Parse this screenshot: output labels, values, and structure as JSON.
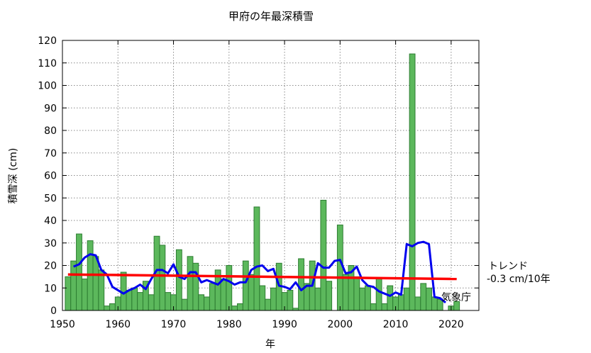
{
  "chart_data": {
    "type": "bar",
    "title": "甲府の年最深積雪",
    "xlabel": "年",
    "ylabel": "積雪深 (cm)",
    "xlim": [
      1950,
      2025
    ],
    "ylim": [
      0,
      120
    ],
    "xticks": [
      "1950",
      "1960",
      "1970",
      "1980",
      "1990",
      "2000",
      "2010",
      "2020"
    ],
    "yticks": [
      "0",
      "10",
      "20",
      "30",
      "40",
      "50",
      "60",
      "70",
      "80",
      "90",
      "100",
      "110",
      "120"
    ],
    "grid": true,
    "x": [
      1951,
      1952,
      1953,
      1954,
      1955,
      1956,
      1957,
      1958,
      1959,
      1960,
      1961,
      1962,
      1963,
      1964,
      1965,
      1966,
      1967,
      1968,
      1969,
      1970,
      1971,
      1972,
      1973,
      1974,
      1975,
      1976,
      1977,
      1978,
      1979,
      1980,
      1981,
      1982,
      1983,
      1984,
      1985,
      1986,
      1987,
      1988,
      1989,
      1990,
      1991,
      1992,
      1993,
      1994,
      1995,
      1996,
      1997,
      1998,
      1999,
      2000,
      2001,
      2002,
      2003,
      2004,
      2005,
      2006,
      2007,
      2008,
      2009,
      2010,
      2011,
      2012,
      2013,
      2014,
      2015,
      2016,
      2017,
      2018,
      2019,
      2020,
      2021
    ],
    "series": [
      {
        "type": "bar",
        "color": "#5cb85c",
        "values": [
          15,
          22,
          34,
          14,
          31,
          24,
          18,
          2,
          3,
          6,
          17,
          9,
          10,
          8,
          13,
          7,
          33,
          29,
          8,
          7,
          27,
          5,
          24,
          21,
          7,
          6,
          12,
          18,
          14,
          20,
          2,
          3,
          22,
          16,
          46,
          11,
          5,
          10,
          21,
          8,
          9,
          1,
          23,
          12,
          22,
          10,
          49,
          13,
          0,
          38,
          16,
          20,
          15,
          10,
          11,
          3,
          14,
          3,
          11,
          6,
          7,
          10,
          114,
          6,
          12,
          10,
          6,
          5,
          0,
          2,
          4
        ]
      },
      {
        "type": "line",
        "color": "#0000ee",
        "x": [
          1952,
          1953,
          1954,
          1955,
          1956,
          1957,
          1958,
          1959,
          1960,
          1961,
          1962,
          1963,
          1964,
          1965,
          1966,
          1967,
          1968,
          1969,
          1970,
          1971,
          1972,
          1973,
          1974,
          1975,
          1976,
          1977,
          1978,
          1979,
          1980,
          1981,
          1982,
          1983,
          1984,
          1985,
          1986,
          1987,
          1988,
          1989,
          1990,
          1991,
          1992,
          1993,
          1994,
          1995,
          1996,
          1997,
          1998,
          1999,
          2000,
          2001,
          2002,
          2003,
          2004,
          2005,
          2006,
          2007,
          2008,
          2009,
          2010,
          2011,
          2012,
          2013,
          2014,
          2015,
          2016,
          2017,
          2018,
          2019
        ],
        "values": [
          19.5,
          20.5,
          23.5,
          25,
          24.5,
          18,
          16,
          10.5,
          9,
          7.5,
          9,
          10,
          11.5,
          9.5,
          14,
          18,
          18,
          16.5,
          20.5,
          15,
          14,
          17,
          17,
          12.5,
          13.5,
          12.5,
          11.5,
          14,
          13,
          11.5,
          12.5,
          12.5,
          18,
          19.5,
          20,
          17.5,
          18.5,
          11,
          10.5,
          9.5,
          12.5,
          9,
          11,
          11,
          21,
          19,
          19,
          22,
          22.5,
          16.5,
          17,
          19.5,
          13.5,
          11,
          10.5,
          8.5,
          7.5,
          6.5,
          8,
          7,
          29.5,
          28.5,
          30,
          30.5,
          29.5,
          6,
          5.5,
          3.5
        ]
      },
      {
        "type": "trend",
        "color": "#ff0000",
        "x": [
          1951,
          2021
        ],
        "values": [
          16,
          14
        ]
      }
    ],
    "annotations": [
      "トレンド",
      "-0.3 cm/10年",
      "気象庁"
    ]
  }
}
